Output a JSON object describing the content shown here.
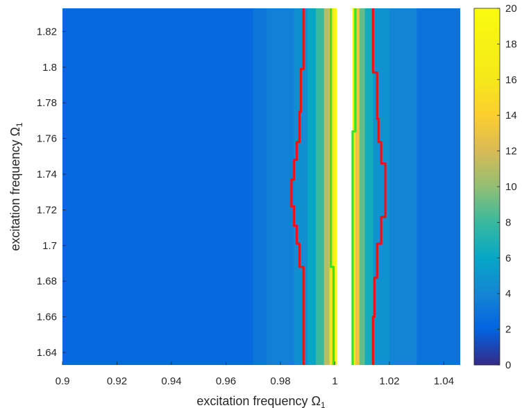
{
  "chart_data": {
    "type": "contour",
    "xlabel": "excitation frequency Ω",
    "xlabel_sub": "1",
    "ylabel": "excitation frequency Ω",
    "ylabel_sub": "1",
    "xlim": [
      0.9,
      1.046
    ],
    "ylim": [
      1.633,
      1.833
    ],
    "xticks": [
      "0.9",
      "0.92",
      "0.94",
      "0.96",
      "0.98",
      "1",
      "1.02",
      "1.04"
    ],
    "yticks": [
      "1.64",
      "1.66",
      "1.68",
      "1.7",
      "1.72",
      "1.74",
      "1.76",
      "1.78",
      "1.8",
      "1.82"
    ],
    "colorbar": {
      "range": [
        0,
        20
      ],
      "ticks": [
        "0",
        "2",
        "4",
        "6",
        "8",
        "10",
        "12",
        "14",
        "16",
        "18",
        "20"
      ],
      "colormap": "parula"
    },
    "field_bands": [
      {
        "x0": 0.9,
        "x1": 0.97,
        "level": 2.4
      },
      {
        "x0": 0.97,
        "x1": 0.975,
        "level": 3.2
      },
      {
        "x0": 0.975,
        "x1": 0.985,
        "level": 3.7
      },
      {
        "x0": 0.985,
        "x1": 0.99,
        "level": 4.6
      },
      {
        "x0": 0.99,
        "x1": 0.993,
        "level": 6.0
      },
      {
        "x0": 0.993,
        "x1": 0.996,
        "level": 8.0
      },
      {
        "x0": 0.996,
        "x1": 0.998,
        "level": 11.0
      },
      {
        "x0": 0.998,
        "x1": 0.9995,
        "level": 15.5
      },
      {
        "x0": 0.9995,
        "x1": 1.0007,
        "level": 19.0
      },
      {
        "x0": 1.0065,
        "x1": 1.0075,
        "level": 17.0
      },
      {
        "x0": 1.0075,
        "x1": 1.009,
        "level": 13.0
      },
      {
        "x0": 1.009,
        "x1": 1.011,
        "level": 9.0
      },
      {
        "x0": 1.011,
        "x1": 1.014,
        "level": 6.5
      },
      {
        "x0": 1.014,
        "x1": 1.02,
        "level": 4.8
      },
      {
        "x0": 1.02,
        "x1": 1.03,
        "level": 4.0
      },
      {
        "x0": 1.03,
        "x1": 1.046,
        "level": 2.9
      }
    ],
    "gaps": [
      {
        "x0": 1.0007,
        "x1": 1.0065,
        "ystart": 1.633,
        "yend": 1.833
      }
    ],
    "contours": [
      {
        "color": "#e8141b",
        "points": [
          [
            0.9885,
            1.633
          ],
          [
            0.9885,
            1.688
          ],
          [
            0.987,
            1.688
          ],
          [
            0.987,
            1.701
          ],
          [
            0.986,
            1.701
          ],
          [
            0.986,
            1.711
          ],
          [
            0.985,
            1.711
          ],
          [
            0.985,
            1.722
          ],
          [
            0.984,
            1.722
          ],
          [
            0.984,
            1.737
          ],
          [
            0.985,
            1.737
          ],
          [
            0.985,
            1.748
          ],
          [
            0.986,
            1.748
          ],
          [
            0.986,
            1.758
          ],
          [
            0.987,
            1.758
          ],
          [
            0.987,
            1.775
          ],
          [
            0.9875,
            1.775
          ],
          [
            0.9875,
            1.799
          ],
          [
            0.9885,
            1.799
          ],
          [
            0.9885,
            1.833
          ]
        ]
      },
      {
        "color": "#e8141b",
        "points": [
          [
            1.014,
            1.633
          ],
          [
            1.014,
            1.66
          ],
          [
            1.0145,
            1.66
          ],
          [
            1.0145,
            1.682
          ],
          [
            1.0155,
            1.682
          ],
          [
            1.0155,
            1.701
          ],
          [
            1.017,
            1.701
          ],
          [
            1.017,
            1.716
          ],
          [
            1.0185,
            1.716
          ],
          [
            1.0185,
            1.746
          ],
          [
            1.017,
            1.746
          ],
          [
            1.017,
            1.758
          ],
          [
            1.016,
            1.758
          ],
          [
            1.016,
            1.771
          ],
          [
            1.0155,
            1.771
          ],
          [
            1.0155,
            1.797
          ],
          [
            1.014,
            1.797
          ],
          [
            1.014,
            1.833
          ]
        ]
      },
      {
        "color": "#33e61f",
        "points": [
          [
            0.9995,
            1.633
          ],
          [
            0.9995,
            1.688
          ],
          [
            0.9985,
            1.688
          ],
          [
            0.9985,
            1.833
          ]
        ]
      },
      {
        "color": "#33e61f",
        "points": [
          [
            1.0065,
            1.633
          ],
          [
            1.0065,
            1.764
          ],
          [
            1.0075,
            1.764
          ],
          [
            1.0075,
            1.833
          ]
        ]
      }
    ]
  }
}
